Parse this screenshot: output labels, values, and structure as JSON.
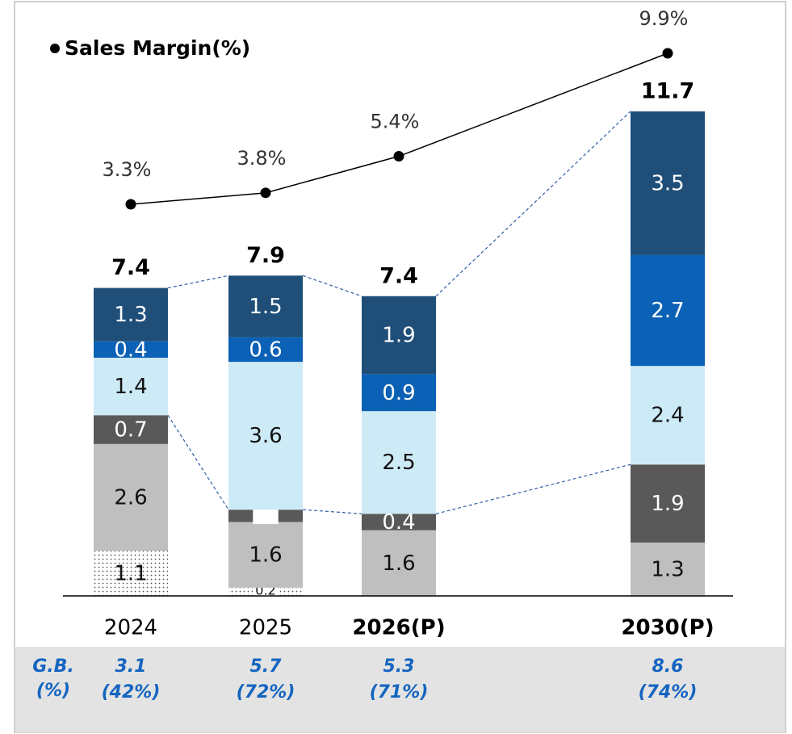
{
  "chart_data": {
    "type": "bar",
    "legend": "Sales Margin(%)",
    "categories": [
      "2024",
      "2025",
      "2026(P)",
      "2030(P)"
    ],
    "series": [
      {
        "color": "#ffffff",
        "pattern": "dotted",
        "values": [
          1.1,
          0.2,
          null,
          null
        ]
      },
      {
        "color": "#bfbfbf",
        "values": [
          2.6,
          1.6,
          1.6,
          1.3
        ]
      },
      {
        "color": "#595959",
        "values": [
          0.7,
          0.3,
          0.4,
          1.9
        ]
      },
      {
        "color": "#cdeaf7",
        "values": [
          1.4,
          3.6,
          2.5,
          2.4
        ]
      },
      {
        "color": "#0b61b5",
        "values": [
          0.4,
          0.6,
          0.9,
          2.7
        ]
      },
      {
        "color": "#1f4e79",
        "values": [
          1.3,
          1.5,
          1.9,
          3.5
        ]
      }
    ],
    "totals": [
      7.4,
      7.9,
      7.4,
      11.7
    ],
    "ylim": [
      0,
      11.7
    ],
    "margin": {
      "type": "line",
      "color": "#000000",
      "values": [
        3.3,
        3.8,
        5.4,
        9.9
      ],
      "value_labels": [
        "3.3%",
        "3.8%",
        "5.4%",
        "9.9%"
      ]
    },
    "gb": {
      "label": [
        "G.B.",
        "(%)"
      ],
      "values": [
        3.1,
        5.7,
        5.3,
        8.6
      ],
      "shares": [
        42,
        72,
        71,
        74
      ],
      "share_labels": [
        "(42%)",
        "(72%)",
        "(71%)",
        "(74%)"
      ],
      "color": "#1565c0"
    }
  }
}
